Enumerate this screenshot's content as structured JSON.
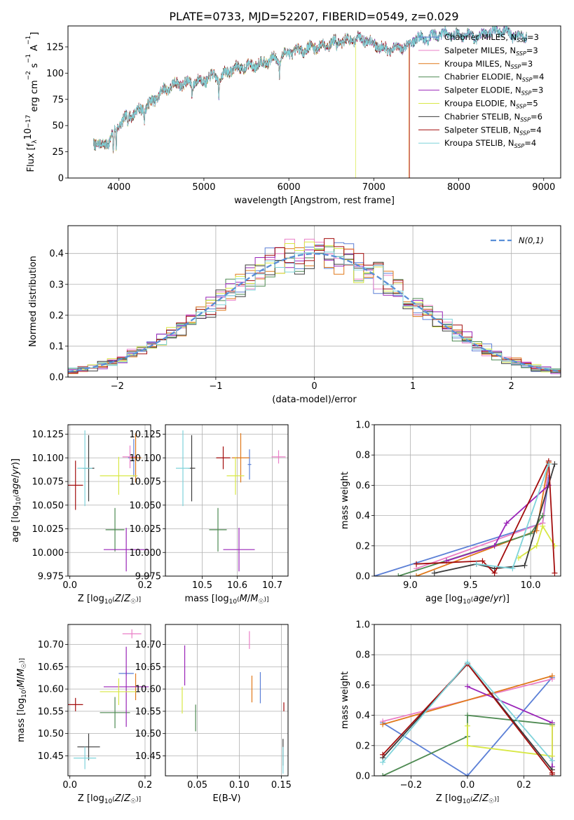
{
  "figure": {
    "title": "PLATE=0733, MJD=52207, FIBERID=0549, z=0.029"
  },
  "models": [
    {
      "name": "Chabrier MILES",
      "nssp": "3",
      "color": "#5b7fd6"
    },
    {
      "name": "Salpeter MILES",
      "nssp": "3",
      "color": "#ea7fc7"
    },
    {
      "name": "Kroupa MILES",
      "nssp": "3",
      "color": "#e0781a"
    },
    {
      "name": "Chabrier ELODIE",
      "nssp": "4",
      "color": "#4e8a52"
    },
    {
      "name": "Salpeter ELODIE",
      "nssp": "3",
      "color": "#9a24b8"
    },
    {
      "name": "Kroupa ELODIE",
      "nssp": "5",
      "color": "#d8e845"
    },
    {
      "name": "Chabrier STELIB",
      "nssp": "6",
      "color": "#3c3c3c"
    },
    {
      "name": "Salpeter STELIB",
      "nssp": "4",
      "color": "#a30d0d"
    },
    {
      "name": "Kroupa STELIB",
      "nssp": "4",
      "color": "#7fd3da"
    }
  ],
  "chart_data": [
    {
      "id": "spectrum",
      "type": "line",
      "xlabel": "wavelength [Angstrom, rest frame]",
      "ylabel_parts": [
        "Flux [f",
        "λ",
        "10",
        "−17",
        " erg cm",
        "−2",
        " s",
        "−1",
        " A",
        "−1",
        "]"
      ],
      "xlim": [
        3400,
        9200
      ],
      "ylim": [
        0,
        145
      ],
      "xticks": [
        4000,
        5000,
        6000,
        7000,
        8000,
        9000
      ],
      "yticks": [
        0,
        25,
        50,
        75,
        100,
        125
      ],
      "continuum_points": [
        [
          3700,
          35
        ],
        [
          3800,
          30
        ],
        [
          3900,
          37
        ],
        [
          4000,
          52
        ],
        [
          4100,
          58
        ],
        [
          4200,
          63
        ],
        [
          4300,
          67
        ],
        [
          4400,
          73
        ],
        [
          4500,
          82
        ],
        [
          4600,
          87
        ],
        [
          4700,
          90
        ],
        [
          4800,
          90
        ],
        [
          4900,
          92
        ],
        [
          5000,
          93
        ],
        [
          5100,
          97
        ],
        [
          5200,
          96
        ],
        [
          5300,
          103
        ],
        [
          5400,
          105
        ],
        [
          5500,
          106
        ],
        [
          5600,
          108
        ],
        [
          5700,
          110
        ],
        [
          5800,
          113
        ],
        [
          5900,
          115
        ],
        [
          6000,
          120
        ],
        [
          6100,
          121
        ],
        [
          6200,
          123
        ],
        [
          6300,
          125
        ],
        [
          6400,
          126
        ],
        [
          6500,
          129
        ],
        [
          6600,
          130
        ],
        [
          6700,
          131
        ],
        [
          6800,
          133
        ],
        [
          6900,
          132
        ],
        [
          7000,
          128
        ],
        [
          7100,
          124
        ],
        [
          7200,
          122
        ],
        [
          7300,
          124
        ],
        [
          7400,
          126
        ],
        [
          7500,
          134
        ],
        [
          7600,
          132
        ],
        [
          7700,
          135
        ],
        [
          7800,
          138
        ],
        [
          7900,
          137
        ],
        [
          8000,
          136
        ],
        [
          8100,
          137
        ],
        [
          8200,
          134
        ],
        [
          8300,
          138
        ],
        [
          8400,
          139
        ],
        [
          8500,
          141
        ],
        [
          8600,
          138
        ],
        [
          8700,
          134
        ],
        [
          8800,
          136
        ]
      ],
      "dips": [
        [
          3934,
          22
        ],
        [
          3968,
          20
        ],
        [
          4102,
          8
        ],
        [
          4300,
          10
        ],
        [
          4861,
          12
        ],
        [
          5175,
          18
        ],
        [
          5890,
          15
        ],
        [
          6563,
          8
        ]
      ],
      "model_cutoffs": [
        {
          "model": "Kroupa ELODIE",
          "x": 6785
        },
        {
          "model": "Kroupa MILES",
          "x": 7410
        },
        {
          "model": "Salpeter STELIB",
          "x": 7420
        }
      ],
      "legend_position": "upper right"
    },
    {
      "id": "residuals",
      "type": "histogram",
      "xlabel": "(data-model)/error",
      "ylabel": "Normed distribution",
      "xlim": [
        -2.5,
        2.5
      ],
      "ylim": [
        0,
        0.49
      ],
      "xticks": [
        -2,
        -1,
        0,
        1,
        2
      ],
      "yticks": [
        0.0,
        0.1,
        0.2,
        0.3,
        0.4
      ],
      "bins": 50,
      "reference_curve": {
        "label": "N(0,1)",
        "mu": 0,
        "sigma": 1,
        "color": "#5a8fd8"
      },
      "legend_position": "upper right"
    },
    {
      "id": "age-vs-Z",
      "type": "errorbar",
      "xlabel": "Z [log10(Z/Z☉)]",
      "ylabel": "age  [log10(age/yr)]",
      "xlim": [
        -0.005,
        0.215
      ],
      "ylim": [
        9.975,
        10.135
      ],
      "xticks": [
        0.0,
        0.2
      ],
      "yticks": [
        9.975,
        10.0,
        10.025,
        10.05,
        10.075,
        10.1,
        10.125
      ],
      "points": [
        {
          "x": 0.17,
          "y": 10.1,
          "xerr": 0.015,
          "yerr": 0.02
        },
        {
          "x": 0.16,
          "y": 10.101,
          "xerr": 0.02,
          "yerr": 0.012
        },
        {
          "x": 0.175,
          "y": 10.1,
          "xerr": 0.015,
          "yerr": 0.026
        },
        {
          "x": 0.12,
          "y": 10.024,
          "xerr": 0.025,
          "yerr": 0.023
        },
        {
          "x": 0.15,
          "y": 10.003,
          "xerr": 0.06,
          "yerr": 0.023
        },
        {
          "x": 0.13,
          "y": 10.081,
          "xerr": 0.05,
          "yerr": 0.02
        },
        {
          "x": 0.05,
          "y": 10.089,
          "xerr": 0.015,
          "yerr": 0.035
        },
        {
          "x": 0.015,
          "y": 10.071,
          "xerr": 0.02,
          "yerr": 0.026
        },
        {
          "x": 0.04,
          "y": 10.089,
          "xerr": 0.02,
          "yerr": 0.04
        }
      ]
    },
    {
      "id": "age-vs-mass",
      "type": "errorbar",
      "xlabel": "mass [log10(M/M☉)]",
      "ylabel": "",
      "xlim": [
        10.395,
        10.745
      ],
      "ylim": [
        9.975,
        10.135
      ],
      "xticks": [
        10.5,
        10.6,
        10.7
      ],
      "yticks": [
        9.975,
        10.0,
        10.025,
        10.05,
        10.075,
        10.1,
        10.125
      ],
      "points": [
        {
          "x": 10.635,
          "y": 10.093,
          "xerr": 0.005,
          "yerr": 0.016
        },
        {
          "x": 10.718,
          "y": 10.101,
          "xerr": 0.02,
          "yerr": 0.007
        },
        {
          "x": 10.61,
          "y": 10.1,
          "xerr": 0.025,
          "yerr": 0.026
        },
        {
          "x": 10.545,
          "y": 10.024,
          "xerr": 0.025,
          "yerr": 0.023
        },
        {
          "x": 10.605,
          "y": 10.003,
          "xerr": 0.045,
          "yerr": 0.023
        },
        {
          "x": 10.595,
          "y": 10.081,
          "xerr": 0.025,
          "yerr": 0.02
        },
        {
          "x": 10.47,
          "y": 10.089,
          "xerr": 0.01,
          "yerr": 0.035
        },
        {
          "x": 10.56,
          "y": 10.1,
          "xerr": 0.02,
          "yerr": 0.012
        },
        {
          "x": 10.445,
          "y": 10.089,
          "xerr": 0.02,
          "yerr": 0.04
        }
      ]
    },
    {
      "id": "mass-weight-vs-age",
      "type": "line",
      "xlabel": "age  [log10(age/yr)]",
      "ylabel": "mass weight",
      "xlim": [
        8.7,
        10.25
      ],
      "ylim": [
        0,
        1
      ],
      "xticks": [
        9.0,
        9.5,
        10.0
      ],
      "yticks": [
        0.0,
        0.2,
        0.4,
        0.6,
        0.8,
        1.0
      ],
      "series": [
        {
          "model": "Chabrier MILES",
          "x": [
            8.7,
            10.1,
            10.15
          ],
          "y": [
            0.0,
            0.35,
            0.65
          ]
        },
        {
          "model": "Salpeter MILES",
          "x": [
            9.05,
            10.1,
            10.15
          ],
          "y": [
            0.05,
            0.35,
            0.75
          ]
        },
        {
          "model": "Kroupa MILES",
          "x": [
            9.05,
            10.05,
            10.15
          ],
          "y": [
            0.0,
            0.3,
            0.75
          ]
        },
        {
          "model": "Chabrier ELODIE",
          "x": [
            8.9,
            10.0,
            10.1
          ],
          "y": [
            0.0,
            0.28,
            0.4
          ]
        },
        {
          "model": "Salpeter ELODIE",
          "x": [
            9.3,
            9.7,
            9.8,
            10.15
          ],
          "y": [
            0.1,
            0.2,
            0.35,
            0.6
          ]
        },
        {
          "model": "Kroupa ELODIE",
          "x": [
            9.9,
            10.05,
            10.1,
            10.2
          ],
          "y": [
            0.12,
            0.2,
            0.33,
            0.2
          ]
        },
        {
          "model": "Chabrier STELIB",
          "x": [
            9.2,
            9.55,
            9.7,
            9.95,
            10.2
          ],
          "y": [
            0.02,
            0.08,
            0.05,
            0.07,
            0.74
          ]
        },
        {
          "model": "Salpeter STELIB",
          "x": [
            9.05,
            9.6,
            9.7,
            10.15,
            10.2
          ],
          "y": [
            0.08,
            0.1,
            0.02,
            0.76,
            0.02
          ]
        },
        {
          "model": "Kroupa STELIB",
          "x": [
            9.55,
            9.85,
            10.15
          ],
          "y": [
            0.08,
            0.05,
            0.74
          ]
        }
      ]
    },
    {
      "id": "mass-vs-Z",
      "type": "errorbar",
      "xlabel": "Z [log10(Z/Z☉)]",
      "ylabel": "mass [log10(M/M☉)]",
      "xlim": [
        -0.005,
        0.215
      ],
      "ylim": [
        10.405,
        10.745
      ],
      "xticks": [
        0.0,
        0.2
      ],
      "yticks": [
        10.45,
        10.5,
        10.55,
        10.6,
        10.65,
        10.7
      ],
      "points": [
        {
          "x": 0.15,
          "y": 10.635,
          "xerr": 0.02,
          "yerr": 0.005
        },
        {
          "x": 0.165,
          "y": 10.724,
          "xerr": 0.025,
          "yerr": 0.01
        },
        {
          "x": 0.175,
          "y": 10.605,
          "xerr": 0.015,
          "yerr": 0.03
        },
        {
          "x": 0.12,
          "y": 10.547,
          "xerr": 0.04,
          "yerr": 0.035
        },
        {
          "x": 0.15,
          "y": 10.605,
          "xerr": 0.06,
          "yerr": 0.09
        },
        {
          "x": 0.13,
          "y": 10.594,
          "xerr": 0.05,
          "yerr": 0.03
        },
        {
          "x": 0.05,
          "y": 10.47,
          "xerr": 0.03,
          "yerr": 0.03
        },
        {
          "x": 0.015,
          "y": 10.565,
          "xerr": 0.02,
          "yerr": 0.015
        },
        {
          "x": 0.04,
          "y": 10.445,
          "xerr": 0.03,
          "yerr": 0.025
        }
      ]
    },
    {
      "id": "mass-vs-EBV",
      "type": "errorbar",
      "xlabel": "E(B-V)",
      "ylabel": "",
      "xlim": [
        0.012,
        0.158
      ],
      "ylim": [
        10.405,
        10.745
      ],
      "xticks": [
        0.05,
        0.1,
        0.15
      ],
      "yticks": [
        10.45,
        10.5,
        10.55,
        10.6,
        10.65,
        10.7
      ],
      "points": [
        {
          "x": 0.125,
          "y": 10.603,
          "xerr": 0.0,
          "yerr": 0.035
        },
        {
          "x": 0.112,
          "y": 10.71,
          "xerr": 0.0,
          "yerr": 0.02
        },
        {
          "x": 0.115,
          "y": 10.6,
          "xerr": 0.0,
          "yerr": 0.03
        },
        {
          "x": 0.048,
          "y": 10.535,
          "xerr": 0.0,
          "yerr": 0.03
        },
        {
          "x": 0.035,
          "y": 10.653,
          "xerr": 0.0,
          "yerr": 0.045
        },
        {
          "x": 0.032,
          "y": 10.575,
          "xerr": 0.0,
          "yerr": 0.03
        },
        {
          "x": 0.152,
          "y": 10.458,
          "xerr": 0.0,
          "yerr": 0.03
        },
        {
          "x": 0.153,
          "y": 10.56,
          "xerr": 0.0,
          "yerr": 0.01
        },
        {
          "x": 0.152,
          "y": 10.44,
          "xerr": 0.0,
          "yerr": 0.03
        }
      ]
    },
    {
      "id": "mass-weight-vs-Z",
      "type": "line",
      "xlabel": "Z [log10(Z/Z☉)]",
      "ylabel": "mass weight",
      "xlim": [
        -0.33,
        0.33
      ],
      "ylim": [
        0,
        1
      ],
      "xticks": [
        -0.2,
        0.0,
        0.2
      ],
      "yticks": [
        0.0,
        0.2,
        0.4,
        0.6,
        0.8,
        1.0
      ],
      "series": [
        {
          "model": "Chabrier MILES",
          "x": [
            -0.3,
            0.0,
            0.3
          ],
          "y": [
            0.35,
            0.0,
            0.65
          ]
        },
        {
          "model": "Salpeter MILES",
          "x": [
            -0.3,
            0.3
          ],
          "y": [
            0.36,
            0.64
          ]
        },
        {
          "model": "Kroupa MILES",
          "x": [
            -0.3,
            0.3
          ],
          "y": [
            0.34,
            0.66
          ]
        },
        {
          "model": "Chabrier ELODIE",
          "x": [
            -0.3,
            0.0,
            0.0,
            0.3
          ],
          "y": [
            0.0,
            0.26,
            0.4,
            0.34
          ]
        },
        {
          "model": "Salpeter ELODIE",
          "x": [
            0.0,
            0.3,
            0.3
          ],
          "y": [
            0.59,
            0.35,
            0.06
          ]
        },
        {
          "model": "Kroupa ELODIE",
          "x": [
            0.0,
            0.0,
            0.3,
            0.3
          ],
          "y": [
            0.33,
            0.2,
            0.13,
            0.33
          ]
        },
        {
          "model": "Chabrier STELIB",
          "x": [
            -0.3,
            0.0,
            0.3
          ],
          "y": [
            0.12,
            0.74,
            0.04
          ]
        },
        {
          "model": "Salpeter STELIB",
          "x": [
            -0.3,
            0.0,
            0.3,
            0.3
          ],
          "y": [
            0.14,
            0.74,
            0.02,
            0.01
          ]
        },
        {
          "model": "Kroupa STELIB",
          "x": [
            -0.3,
            0.0,
            0.3
          ],
          "y": [
            0.09,
            0.75,
            0.1
          ]
        }
      ]
    }
  ]
}
